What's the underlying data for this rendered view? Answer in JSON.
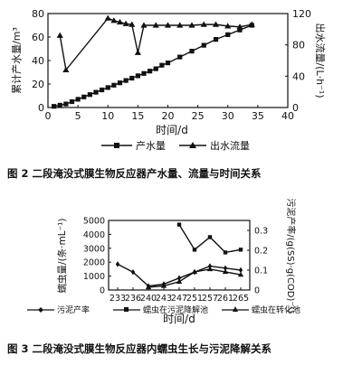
{
  "chart_data": [
    {
      "type": "line",
      "xlabel": "时间/d",
      "ylabel_left": "累计产水量/m³",
      "ylabel_right": "出水流量/(L·h⁻¹)",
      "xlim": [
        0,
        40
      ],
      "ylim_left": [
        0,
        80
      ],
      "ylim_right": [
        0,
        120
      ],
      "x_ticks": [
        0,
        5,
        10,
        15,
        20,
        25,
        30,
        35,
        40
      ],
      "y_ticks_left": [
        0,
        20,
        40,
        60,
        80
      ],
      "y_ticks_right": [
        0,
        40,
        80,
        120
      ],
      "legend_position": "bottom",
      "grid": false,
      "series": [
        {
          "name": "产水量",
          "axis": "left",
          "marker": "square",
          "x": [
            1,
            2,
            3,
            4,
            5,
            6,
            7,
            8,
            9,
            10,
            11,
            12,
            13,
            14,
            15,
            16,
            17,
            18,
            19,
            20,
            22,
            24,
            26,
            28,
            30,
            32,
            34
          ],
          "y": [
            1,
            2,
            3,
            5,
            7,
            9,
            11,
            13,
            15,
            17,
            19,
            21,
            23,
            25,
            27,
            29,
            31,
            33,
            36,
            38,
            43,
            48,
            53,
            58,
            62,
            66,
            70
          ]
        },
        {
          "name": "出水流量",
          "axis": "right",
          "marker": "triangle",
          "x": [
            2,
            3,
            10,
            11,
            12,
            13,
            14,
            15,
            16,
            18,
            20,
            22,
            24,
            26,
            28,
            30,
            32,
            34
          ],
          "y": [
            92,
            48,
            114,
            111,
            109,
            107,
            106,
            70,
            105,
            105,
            105,
            105,
            105,
            106,
            106,
            104,
            103,
            106
          ]
        }
      ],
      "caption": "图 2   二段淹没式膜生物反应器产水量、流量与时间关系"
    },
    {
      "type": "line",
      "xlabel": "时间/d",
      "ylabel_left": "蠕虫量/(条·mL⁻¹)",
      "ylabel_right": "污泥产率/(g(SS)·g(COD)⁻¹)",
      "categories": [
        "233",
        "236",
        "240",
        "243",
        "247",
        "251",
        "257",
        "261",
        "265"
      ],
      "ylim_left": [
        0,
        5000
      ],
      "ylim_right": [
        0,
        0.35
      ],
      "y_ticks_left": [
        0,
        1000,
        2000,
        3000,
        4000,
        5000
      ],
      "y_ticks_right": [
        0,
        0.1,
        0.2,
        0.3
      ],
      "legend_position": "bottom",
      "grid": false,
      "series": [
        {
          "name": "污泥产率",
          "axis": "right",
          "marker": "diamond",
          "values": [
            0.13,
            0.09,
            0.02,
            0.03,
            0.06,
            0.09,
            0.12,
            0.11,
            0.1
          ]
        },
        {
          "name": "蠕虫在污泥降解池",
          "axis": "left",
          "marker": "square",
          "values": [
            null,
            null,
            null,
            null,
            4700,
            2900,
            3800,
            2700,
            2900
          ]
        },
        {
          "name": "蠕虫在转化池",
          "axis": "left",
          "marker": "triangle",
          "values": [
            null,
            null,
            200,
            300,
            600,
            1300,
            1500,
            1300,
            1100
          ]
        }
      ],
      "caption": "图 3   二段淹没式膜生物反应器内蠕虫生长与污泥降解关系"
    }
  ]
}
